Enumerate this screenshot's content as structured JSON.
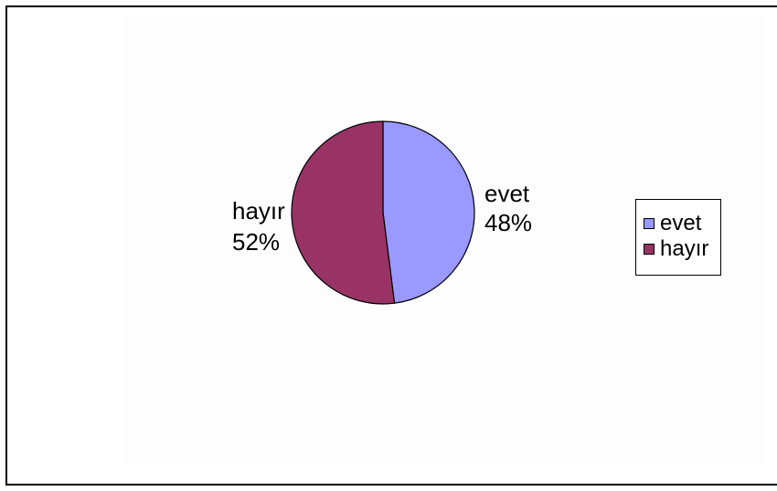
{
  "chart_data": {
    "type": "pie",
    "title": "",
    "slices": [
      {
        "label": "evet",
        "value": 48,
        "value_label": "48%",
        "color": "#9999ff"
      },
      {
        "label": "hayır",
        "value": 52,
        "value_label": "52%",
        "color": "#993366"
      }
    ],
    "legend": {
      "position": "right",
      "items": [
        {
          "label": "evet",
          "color": "#9999ff"
        },
        {
          "label": "hayır",
          "color": "#993366"
        }
      ]
    }
  }
}
